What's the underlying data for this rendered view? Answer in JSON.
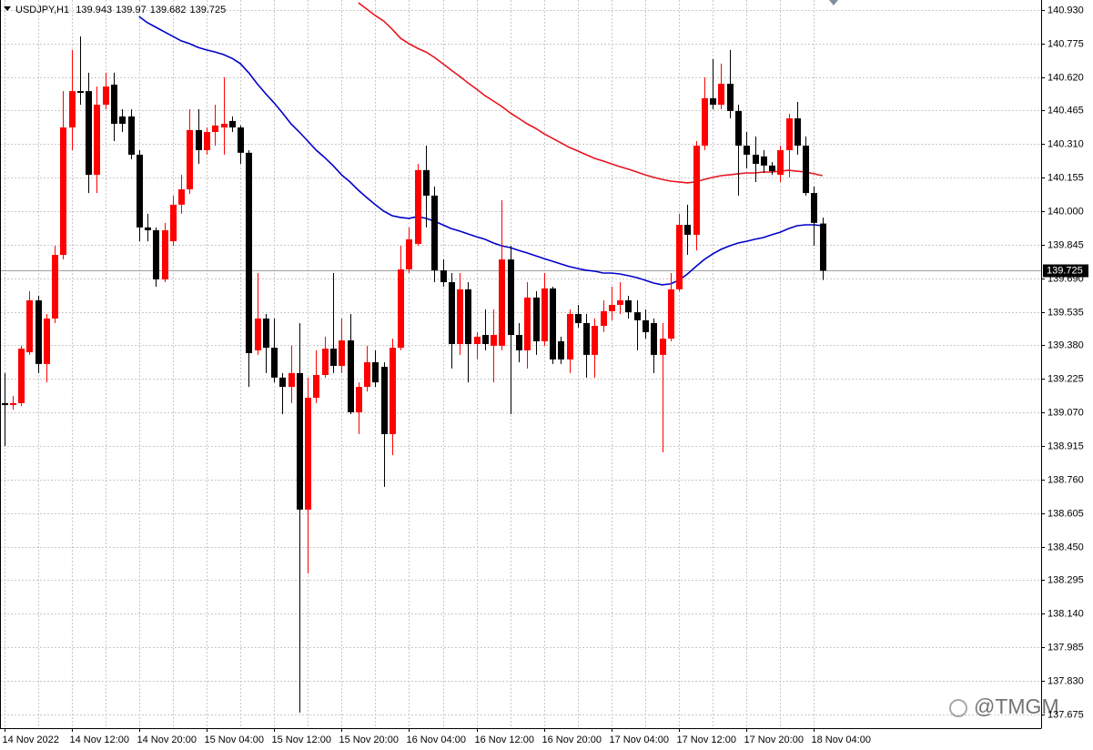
{
  "chart_data": {
    "type": "candlestick",
    "title": "USDJPY,H1",
    "watermark": "@TMGM",
    "up_color": "#ff0000",
    "down_color": "#000000",
    "grid": true,
    "categories": [
      "14 Nov 2022",
      null,
      null,
      null,
      null,
      null,
      null,
      null,
      "14 Nov 12:00",
      null,
      null,
      null,
      null,
      null,
      null,
      null,
      "14 Nov 20:00",
      null,
      null,
      null,
      null,
      null,
      null,
      null,
      "15 Nov 04:00",
      null,
      null,
      null,
      null,
      null,
      null,
      null,
      "15 Nov 12:00",
      null,
      null,
      null,
      null,
      null,
      null,
      null,
      "15 Nov 20:00",
      null,
      null,
      null,
      null,
      null,
      null,
      null,
      "16 Nov 04:00",
      null,
      null,
      null,
      null,
      null,
      null,
      null,
      "16 Nov 12:00",
      null,
      null,
      null,
      null,
      null,
      null,
      null,
      "16 Nov 20:00",
      null,
      null,
      null,
      null,
      null,
      null,
      null,
      "17 Nov 04:00",
      null,
      null,
      null,
      null,
      null,
      null,
      null,
      "17 Nov 12:00",
      null,
      null,
      null,
      null,
      null,
      null,
      null,
      "17 Nov 20:00",
      null,
      null,
      null,
      null,
      null,
      null,
      null,
      "18 Nov 04:00",
      null
    ],
    "open": [
      139.113,
      139.104,
      139.113,
      139.348,
      139.588,
      139.294,
      139.504,
      139.798,
      140.387,
      140.555,
      140.555,
      140.168,
      140.492,
      140.585,
      140.438,
      140.438,
      140.261,
      139.925,
      139.912,
      139.685,
      139.861,
      140.03,
      140.101,
      140.375,
      140.282,
      140.366,
      140.387,
      140.417,
      140.387,
      140.27,
      139.357,
      139.504,
      139.369,
      139.231,
      139.188,
      139.252,
      138.621,
      139.138,
      139.243,
      139.365,
      139.285,
      139.403,
      139.071,
      139.188,
      139.302,
      139.281,
      138.97,
      139.369,
      139.731,
      139.849,
      140.19,
      140.072,
      139.727,
      139.672,
      139.386,
      139.639,
      139.386,
      139.428,
      139.378,
      139.378,
      139.777,
      139.428,
      139.357,
      139.601,
      139.399,
      139.643,
      139.399,
      139.315,
      139.525,
      139.483,
      139.336,
      139.47,
      139.538,
      139.567,
      139.588,
      139.533,
      139.496,
      139.483,
      139.336,
      139.411,
      139.639,
      139.937,
      139.891,
      140.303,
      140.522,
      140.492,
      140.589,
      140.463,
      140.303,
      140.261,
      140.253,
      140.211,
      140.168,
      140.282,
      140.429,
      140.303,
      140.084,
      139.943
    ],
    "high": [
      139.252,
      139.146,
      139.378,
      139.63,
      139.609,
      139.525,
      139.84,
      140.555,
      140.745,
      140.808,
      140.64,
      140.576,
      140.64,
      140.64,
      140.471,
      140.471,
      140.282,
      139.988,
      139.925,
      139.946,
      140.072,
      140.168,
      140.471,
      140.471,
      140.387,
      140.492,
      140.619,
      140.438,
      140.396,
      140.282,
      139.714,
      139.525,
      139.504,
      139.252,
      139.378,
      139.483,
      139.231,
      139.357,
      139.42,
      139.714,
      139.504,
      139.525,
      139.209,
      139.378,
      139.357,
      139.302,
      139.411,
      139.84,
      139.925,
      140.219,
      140.303,
      140.114,
      139.777,
      139.714,
      139.714,
      139.672,
      139.441,
      139.546,
      139.546,
      140.051,
      139.84,
      139.483,
      139.672,
      139.63,
      139.714,
      139.651,
      139.42,
      139.546,
      139.567,
      139.525,
      139.504,
      139.588,
      139.651,
      139.672,
      139.609,
      139.588,
      139.546,
      139.504,
      139.483,
      139.714,
      139.988,
      140.03,
      140.324,
      140.619,
      140.703,
      140.682,
      140.745,
      140.492,
      140.366,
      140.345,
      140.282,
      140.227,
      140.303,
      140.45,
      140.505,
      140.345,
      140.114,
      139.97
    ],
    "low": [
      138.915,
      139.083,
      139.1,
      139.336,
      139.252,
      139.209,
      139.483,
      139.777,
      140.282,
      140.492,
      140.084,
      140.084,
      140.471,
      140.324,
      140.366,
      140.24,
      139.861,
      139.861,
      139.651,
      139.672,
      139.84,
      139.988,
      140.08,
      140.219,
      140.261,
      140.303,
      140.261,
      140.366,
      140.219,
      139.188,
      139.336,
      139.252,
      139.209,
      139.062,
      139.113,
      137.683,
      138.326,
      139.113,
      139.231,
      139.252,
      139.252,
      139.062,
      138.97,
      139.167,
      139.188,
      138.726,
      138.873,
      139.357,
      139.714,
      139.84,
      139.925,
      139.672,
      139.651,
      139.273,
      139.336,
      139.209,
      139.315,
      139.357,
      139.209,
      139.357,
      139.062,
      139.302,
      139.273,
      139.336,
      139.378,
      139.294,
      139.294,
      139.252,
      139.462,
      139.231,
      139.231,
      139.441,
      139.496,
      139.525,
      139.504,
      139.357,
      139.411,
      139.252,
      138.886,
      139.399,
      139.63,
      139.798,
      139.819,
      140.282,
      140.471,
      140.471,
      140.429,
      140.072,
      140.198,
      140.135,
      140.177,
      140.168,
      140.135,
      140.156,
      140.261,
      140.072,
      139.84,
      139.682
    ],
    "close": [
      139.104,
      139.113,
      139.365,
      139.588,
      139.294,
      139.504,
      139.798,
      140.387,
      140.555,
      140.547,
      140.168,
      140.492,
      140.576,
      140.404,
      140.404,
      140.261,
      139.925,
      139.912,
      139.685,
      139.912,
      140.03,
      140.101,
      140.375,
      140.282,
      140.366,
      140.396,
      140.404,
      140.387,
      140.27,
      139.344,
      139.504,
      139.369,
      139.231,
      139.188,
      139.252,
      138.621,
      139.138,
      139.243,
      139.365,
      139.285,
      139.403,
      139.071,
      139.188,
      139.302,
      139.209,
      138.97,
      139.369,
      139.731,
      139.87,
      140.19,
      140.072,
      139.727,
      139.672,
      139.386,
      139.639,
      139.386,
      139.42,
      139.386,
      139.428,
      139.777,
      139.428,
      139.357,
      139.601,
      139.399,
      139.643,
      139.315,
      139.315,
      139.525,
      139.483,
      139.336,
      139.47,
      139.538,
      139.567,
      139.588,
      139.533,
      139.496,
      139.441,
      139.336,
      139.411,
      139.639,
      139.937,
      139.891,
      140.303,
      140.522,
      140.492,
      140.589,
      140.463,
      140.303,
      140.261,
      140.219,
      140.211,
      140.185,
      140.282,
      140.429,
      140.303,
      140.084,
      139.946,
      139.725
    ],
    "moving_averages": [
      {
        "color": "#0000c8",
        "values": [
          null,
          null,
          null,
          null,
          null,
          null,
          null,
          null,
          null,
          null,
          null,
          null,
          null,
          null,
          null,
          null,
          140.9,
          140.871,
          140.85,
          140.829,
          140.808,
          140.787,
          140.774,
          140.757,
          140.745,
          140.736,
          140.724,
          140.707,
          140.682,
          140.64,
          140.589,
          140.543,
          140.501,
          140.454,
          140.404,
          140.366,
          140.324,
          140.282,
          140.248,
          140.211,
          140.168,
          140.135,
          140.097,
          140.063,
          140.03,
          140.0,
          139.979,
          139.971,
          139.967,
          139.975,
          139.967,
          139.954,
          139.937,
          139.92,
          139.908,
          139.895,
          139.882,
          139.87,
          139.853,
          139.84,
          139.832,
          139.819,
          139.807,
          139.794,
          139.781,
          139.769,
          139.756,
          139.744,
          139.735,
          139.727,
          139.723,
          139.714,
          139.714,
          139.71,
          139.702,
          139.693,
          139.681,
          139.668,
          139.66,
          139.664,
          139.681,
          139.71,
          139.744,
          139.777,
          139.803,
          139.824,
          139.84,
          139.853,
          139.861,
          139.87,
          139.878,
          139.891,
          139.903,
          139.92,
          139.933,
          139.937,
          139.937,
          139.933
        ]
      },
      {
        "color": "#e8141e",
        "values": [
          null,
          null,
          null,
          null,
          null,
          null,
          null,
          null,
          null,
          null,
          null,
          null,
          null,
          null,
          null,
          null,
          null,
          null,
          null,
          null,
          null,
          null,
          null,
          null,
          null,
          null,
          null,
          null,
          null,
          null,
          null,
          null,
          null,
          null,
          null,
          null,
          null,
          null,
          null,
          null,
          null,
          null,
          140.963,
          140.934,
          140.904,
          140.879,
          140.841,
          140.799,
          140.774,
          140.753,
          140.736,
          140.711,
          140.682,
          140.652,
          140.623,
          140.593,
          140.564,
          140.534,
          140.509,
          140.484,
          140.454,
          140.429,
          140.404,
          140.383,
          140.358,
          140.337,
          140.316,
          140.295,
          140.278,
          140.261,
          140.244,
          140.232,
          140.219,
          140.206,
          140.194,
          140.181,
          140.168,
          140.156,
          140.147,
          140.139,
          140.135,
          140.131,
          140.135,
          140.147,
          140.156,
          140.164,
          140.168,
          140.173,
          140.177,
          140.177,
          140.181,
          140.181,
          140.185,
          140.189,
          140.185,
          140.181,
          140.173,
          140.164
        ]
      }
    ],
    "ylim": [
      137.611,
      140.976
    ],
    "yticks": [
      {
        "value": 140.93,
        "label": "140.930"
      },
      140.775,
      {
        "value": 140.62,
        "label": "140.620"
      },
      140.465,
      {
        "value": 140.31,
        "label": "140.310"
      },
      140.155,
      {
        "value": 140.0,
        "label": "140.000"
      },
      139.845,
      {
        "value": 139.69,
        "label": "139.690"
      },
      139.535,
      {
        "value": 139.38,
        "label": "139.380"
      },
      139.225,
      {
        "value": 139.07,
        "label": "139.070"
      },
      138.915,
      {
        "value": 138.76,
        "label": "138.760"
      },
      138.605,
      {
        "value": 138.45,
        "label": "138.450"
      },
      138.295,
      {
        "value": 138.14,
        "label": "138.140"
      },
      137.985,
      {
        "value": 137.83,
        "label": "137.830"
      },
      137.675
    ]
  }
}
